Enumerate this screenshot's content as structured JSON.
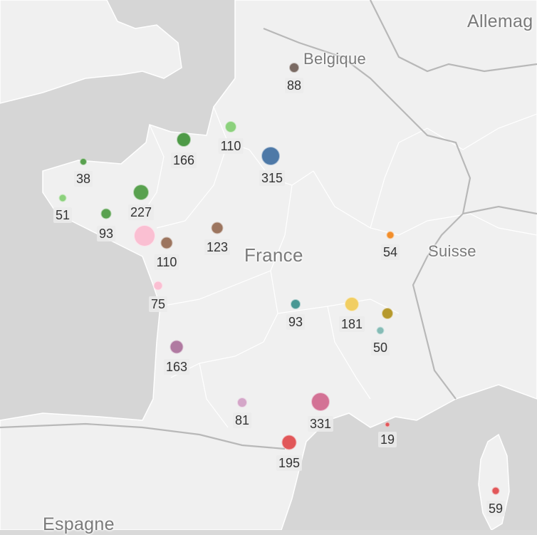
{
  "map": {
    "countries": {
      "germany": "Allemag",
      "belgium": "Belgique",
      "france": "France",
      "switzerland": "Suisse",
      "spain": "Espagne"
    }
  },
  "markers": [
    {
      "value": "88",
      "color": "#7a6a63"
    },
    {
      "value": "166",
      "color": "#4e9a47"
    },
    {
      "value": "110",
      "color": "#8cd17d"
    },
    {
      "value": "315",
      "color": "#4e79a7"
    },
    {
      "value": "38",
      "color": "#59a14f"
    },
    {
      "value": "51",
      "color": "#8cd17d"
    },
    {
      "value": "227",
      "color": "#59a14f"
    },
    {
      "value": "93",
      "color": "#59a14f"
    },
    {
      "value": "110",
      "color": "#9c755f"
    },
    {
      "value": "123",
      "color": "#9c755f"
    },
    {
      "value": "54",
      "color": "#f28e2b"
    },
    {
      "value": "75",
      "color": "#fabfd2"
    },
    {
      "value": "93",
      "color": "#499894"
    },
    {
      "value": "181",
      "color": "#f1ce63"
    },
    {
      "value": "50",
      "color": "#86bcb6"
    },
    {
      "value": "163",
      "color": "#b07aa1"
    },
    {
      "value": "81",
      "color": "#d4a6c8"
    },
    {
      "value": "331",
      "color": "#d37295"
    },
    {
      "value": "19",
      "color": "#e15759"
    },
    {
      "value": "195",
      "color": "#e15759"
    },
    {
      "value": "59",
      "color": "#e15759"
    },
    {
      "value": "",
      "color": "#b6992d"
    },
    {
      "value": "",
      "color": "#fabfd2"
    }
  ]
}
